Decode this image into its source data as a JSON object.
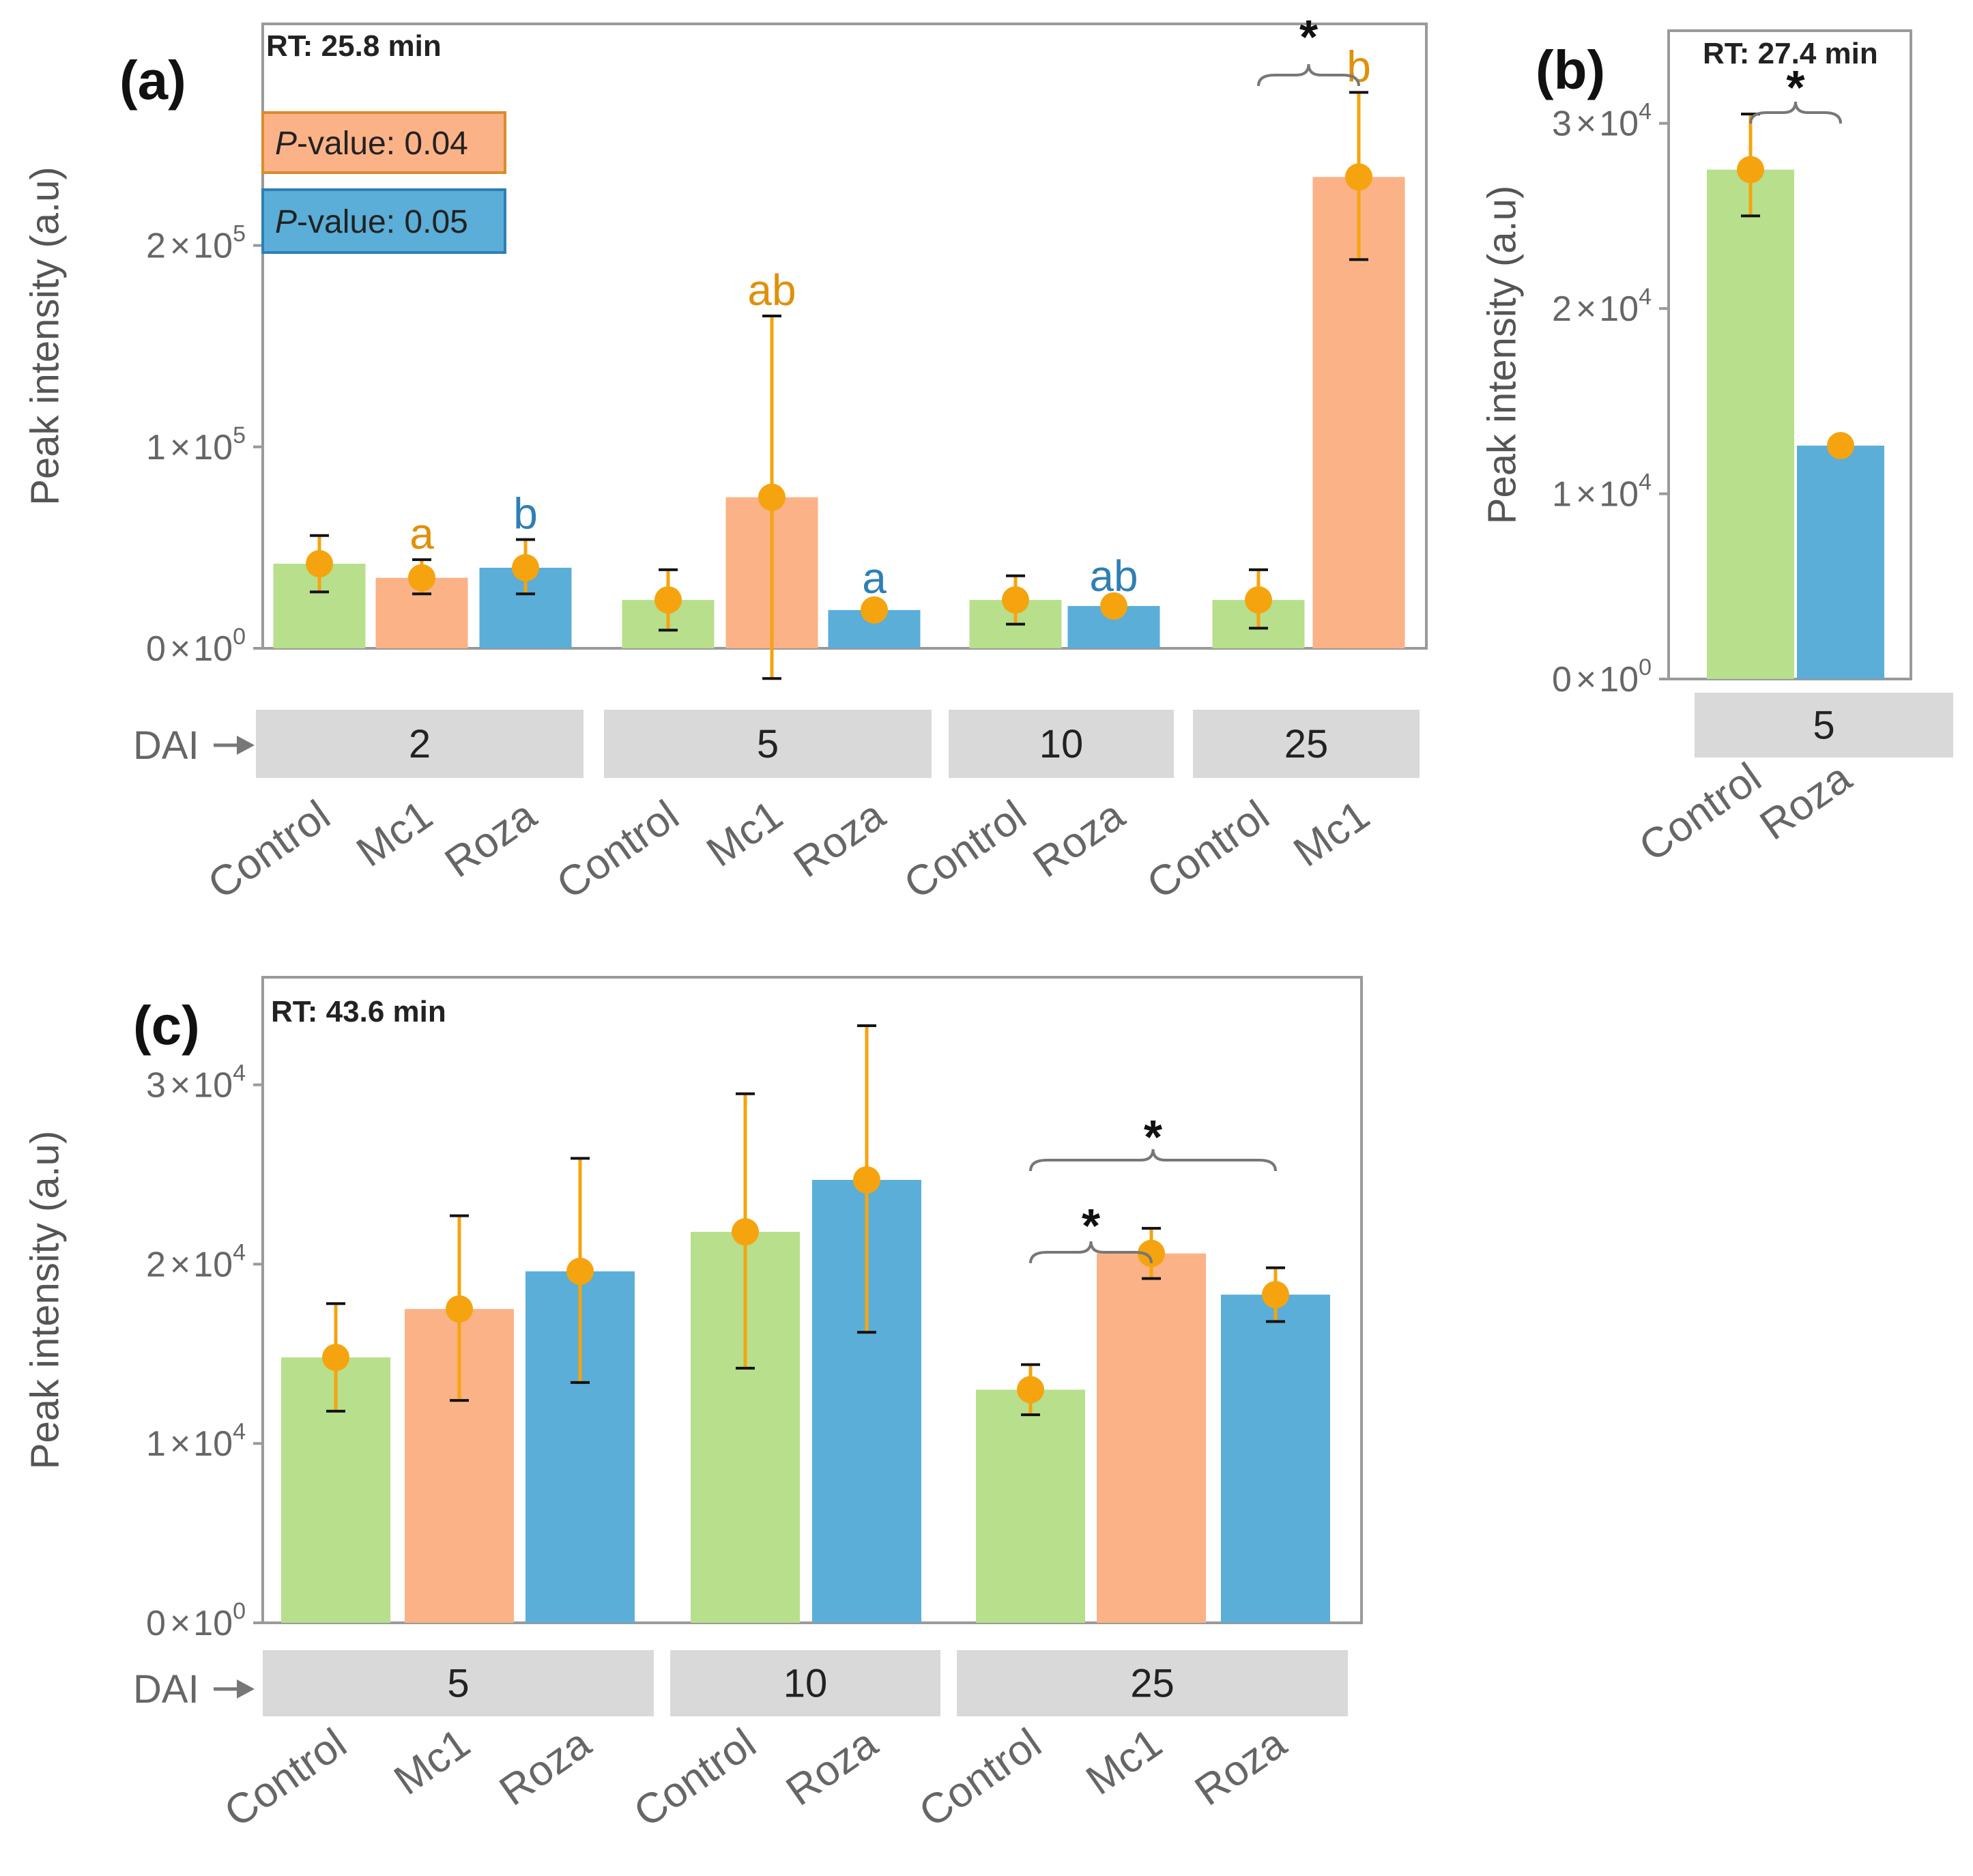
{
  "colors": {
    "control": "#b8df8c",
    "mc1": "#fbb287",
    "roza": "#5aaed8",
    "point": "#f5a40f",
    "letter_orange": "#e0900a",
    "letter_blue": "#2f7fb5",
    "strip": "#d9d9d9",
    "frame": "#9a9a9a",
    "pval_orange_bg": "#fbb287",
    "pval_orange_border": "#d98c2c",
    "pval_blue_bg": "#5aaed8",
    "pval_blue_border": "#2f7fb5"
  },
  "dai_label": "DAI",
  "chart_data": [
    {
      "id": "a",
      "type": "bar",
      "panel_label": "(a)",
      "subtitle": "RT: 25.8 min",
      "ylabel": "Peak intensity (a.u)",
      "ylim": [
        0,
        310000
      ],
      "yticks": [
        {
          "value": 0,
          "mant": "0",
          "exp": "0"
        },
        {
          "value": 100000,
          "mant": "1",
          "exp": "5"
        },
        {
          "value": 200000,
          "mant": "2",
          "exp": "5"
        }
      ],
      "pvalues": [
        {
          "label": "P",
          "text": "-value: 0.04",
          "color": "orange"
        },
        {
          "label": "P",
          "text": "-value: 0.05",
          "color": "blue"
        }
      ],
      "groups": [
        {
          "dai": "2",
          "bars": [
            {
              "label": "Control",
              "treatment": "control",
              "value": 42000,
              "lo": 28000,
              "hi": 56000
            },
            {
              "label": "Mc1",
              "treatment": "mc1",
              "value": 35000,
              "lo": 27000,
              "hi": 44000,
              "letter": "a",
              "letter_color": "orange"
            },
            {
              "label": "Roza",
              "treatment": "roza",
              "value": 40000,
              "lo": 27000,
              "hi": 54000,
              "letter": "b",
              "letter_color": "blue"
            }
          ]
        },
        {
          "dai": "5",
          "bars": [
            {
              "label": "Control",
              "treatment": "control",
              "value": 24000,
              "lo": 9000,
              "hi": 39000
            },
            {
              "label": "Mc1",
              "treatment": "mc1",
              "value": 75000,
              "lo": -15000,
              "hi": 165000,
              "letter": "ab",
              "letter_color": "orange"
            },
            {
              "label": "Roza",
              "treatment": "roza",
              "value": 19000,
              "lo": 15000,
              "hi": 22000,
              "letter": "a",
              "letter_color": "blue"
            }
          ]
        },
        {
          "dai": "10",
          "bars": [
            {
              "label": "Control",
              "treatment": "control",
              "value": 24000,
              "lo": 12000,
              "hi": 36000
            },
            {
              "label": "Roza",
              "treatment": "roza",
              "value": 21000,
              "lo": 19000,
              "hi": 23000,
              "letter": "ab",
              "letter_color": "blue"
            }
          ]
        },
        {
          "dai": "25",
          "bars": [
            {
              "label": "Control",
              "treatment": "control",
              "value": 24000,
              "lo": 10000,
              "hi": 39000
            },
            {
              "label": "Mc1",
              "treatment": "mc1",
              "value": 234000,
              "lo": 193000,
              "hi": 276000,
              "letter": "b",
              "letter_color": "orange"
            }
          ]
        }
      ],
      "brackets": [
        {
          "from": [
            3,
            0
          ],
          "to": [
            3,
            1
          ],
          "label": "*"
        }
      ]
    },
    {
      "id": "b",
      "type": "bar",
      "panel_label": "(b)",
      "subtitle": "RT: 27.4 min",
      "ylabel": "Peak intensity (a.u)",
      "ylim": [
        0,
        35000
      ],
      "yticks": [
        {
          "value": 0,
          "mant": "0",
          "exp": "0"
        },
        {
          "value": 10000,
          "mant": "1",
          "exp": "4"
        },
        {
          "value": 20000,
          "mant": "2",
          "exp": "4"
        },
        {
          "value": 30000,
          "mant": "3",
          "exp": "4"
        }
      ],
      "groups": [
        {
          "dai": "5",
          "bars": [
            {
              "label": "Control",
              "treatment": "control",
              "value": 27500,
              "lo": 25000,
              "hi": 30500
            },
            {
              "label": "Roza",
              "treatment": "roza",
              "value": 12600,
              "lo": 12600,
              "hi": 12600
            }
          ]
        }
      ],
      "brackets": [
        {
          "from": [
            0,
            0
          ],
          "to": [
            0,
            1
          ],
          "label": "*"
        }
      ]
    },
    {
      "id": "c",
      "type": "bar",
      "panel_label": "(c)",
      "subtitle": "RT: 43.6 min",
      "ylabel": "Peak intensity (a.u)",
      "ylim": [
        0,
        36000
      ],
      "yticks": [
        {
          "value": 0,
          "mant": "0",
          "exp": "0"
        },
        {
          "value": 10000,
          "mant": "1",
          "exp": "4"
        },
        {
          "value": 20000,
          "mant": "2",
          "exp": "4"
        },
        {
          "value": 30000,
          "mant": "3",
          "exp": "4"
        }
      ],
      "groups": [
        {
          "dai": "5",
          "bars": [
            {
              "label": "Control",
              "treatment": "control",
              "value": 14800,
              "lo": 11800,
              "hi": 17800
            },
            {
              "label": "Mc1",
              "treatment": "mc1",
              "value": 17500,
              "lo": 12400,
              "hi": 22700
            },
            {
              "label": "Roza",
              "treatment": "roza",
              "value": 19600,
              "lo": 13400,
              "hi": 25900
            }
          ]
        },
        {
          "dai": "10",
          "bars": [
            {
              "label": "Control",
              "treatment": "control",
              "value": 21800,
              "lo": 14200,
              "hi": 29500
            },
            {
              "label": "Roza",
              "treatment": "roza",
              "value": 24700,
              "lo": 16200,
              "hi": 33300
            }
          ]
        },
        {
          "dai": "25",
          "bars": [
            {
              "label": "Control",
              "treatment": "control",
              "value": 13000,
              "lo": 11600,
              "hi": 14400
            },
            {
              "label": "Mc1",
              "treatment": "mc1",
              "value": 20600,
              "lo": 19200,
              "hi": 22000
            },
            {
              "label": "Roza",
              "treatment": "roza",
              "value": 18300,
              "lo": 16800,
              "hi": 19800
            }
          ]
        }
      ],
      "brackets": [
        {
          "from": [
            2,
            0
          ],
          "to": [
            2,
            1
          ],
          "label": "*"
        },
        {
          "from": [
            2,
            0
          ],
          "to": [
            2,
            2
          ],
          "label": "*"
        }
      ]
    }
  ]
}
